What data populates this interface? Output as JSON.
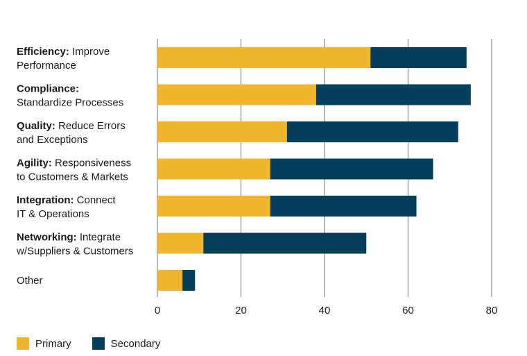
{
  "chart_data": {
    "type": "bar",
    "orientation": "horizontal",
    "stacked": true,
    "categories": [
      {
        "bold": "Efficiency:",
        "rest": " Improve",
        "line2": "Performance"
      },
      {
        "bold": "Compliance:",
        "rest": "",
        "line2": "Standardize Processes"
      },
      {
        "bold": "Quality:",
        "rest": " Reduce Errors",
        "line2": "and Exceptions"
      },
      {
        "bold": "Agility:",
        "rest": " Responsiveness",
        "line2": "to Customers & Markets"
      },
      {
        "bold": "Integration:",
        "rest": " Connect",
        "line2": "IT & Operations"
      },
      {
        "bold": "Networking:",
        "rest": " Integrate",
        "line2": "w/Suppliers & Customers"
      },
      {
        "bold": "",
        "rest": "Other",
        "line2": ""
      }
    ],
    "series": [
      {
        "name": "Primary",
        "color": "#f2b62e",
        "values": [
          51,
          38,
          31,
          27,
          27,
          11,
          6
        ]
      },
      {
        "name": "Secondary",
        "color": "#043f5c",
        "values": [
          23,
          37,
          41,
          39,
          35,
          39,
          3
        ]
      }
    ],
    "xlim": [
      0,
      80
    ],
    "xticks": [
      0,
      20,
      40,
      60,
      80
    ],
    "xtick_labels": [
      "0",
      "20",
      "40",
      "60",
      "80"
    ],
    "grid": "vertical",
    "grid_color": "#8a8a8a",
    "legend_position": "bottom-left"
  }
}
